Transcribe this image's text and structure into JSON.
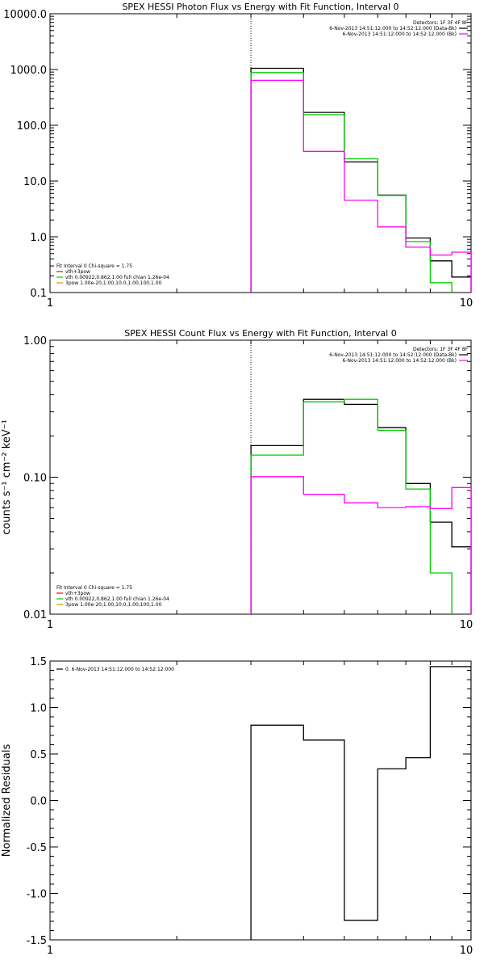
{
  "chart_data": [
    {
      "type": "line",
      "title": "SPEX HESSI Photon Flux vs Energy with Fit Function, Interval 0",
      "xscale": "log",
      "yscale": "log",
      "xlim": [
        1,
        10
      ],
      "ylim": [
        0.1,
        10000
      ],
      "x_ticks": [
        "1",
        "10"
      ],
      "y_ticks": [
        "0.1",
        "1.0",
        "10.0",
        "100.0",
        "1000.0",
        "10000.0"
      ],
      "ylabel": "",
      "xlabel": "",
      "energy_marker": 3,
      "legend_right": {
        "header": "Detectors: 1F 3F 4F 8F",
        "entries": [
          {
            "label": "6-Nov-2013 14:51:12.000 to 14:52:12.000 (Data-Bk)",
            "color": "#000000"
          },
          {
            "label": "6-Nov-2013 14:51:12.000 to 14:52:12.000 (Bk)",
            "color": "#ff00ff"
          }
        ]
      },
      "legend_left": {
        "header": "Fit Interval 0   Chi-square = 1.75",
        "entries": [
          {
            "label": "vth+3pow",
            "color": "#ff0000"
          },
          {
            "label": "vth 0.00922,0.862,1.00  full chian 1.26e-04",
            "color": "#00cc00"
          },
          {
            "label": "3pow 1.00e-20,1.00,10.0,1.00,100,1.00",
            "color": "#cc9900"
          }
        ]
      },
      "series": [
        {
          "color": "#000000",
          "edges": [
            3,
            4,
            5,
            6,
            7,
            8,
            9,
            10
          ],
          "values": [
            1050,
            170,
            22,
            5.6,
            0.95,
            0.37,
            0.19
          ]
        },
        {
          "color": "#00cc00",
          "edges": [
            3,
            4,
            5,
            6,
            7,
            8,
            9
          ],
          "values": [
            880,
            155,
            25,
            5.5,
            0.82,
            0.15
          ]
        },
        {
          "color": "#ff00ff",
          "edges": [
            3,
            4,
            5,
            6,
            7,
            8,
            9,
            10
          ],
          "values": [
            640,
            34,
            4.5,
            1.5,
            0.65,
            0.47,
            0.53
          ]
        }
      ]
    },
    {
      "type": "line",
      "title": "SPEX HESSI Count Flux vs Energy with Fit Function, Interval 0",
      "xscale": "log",
      "yscale": "log",
      "xlim": [
        1,
        10
      ],
      "ylim": [
        0.01,
        1.0
      ],
      "x_ticks": [
        "1",
        "10"
      ],
      "y_ticks": [
        "0.01",
        "0.10",
        "1.00"
      ],
      "ylabel": "counts s⁻¹ cm⁻² keV⁻¹",
      "xlabel": "",
      "energy_marker": 3,
      "legend_right": {
        "header": "Detectors: 1F 3F 4F 8F",
        "entries": [
          {
            "label": "6-Nov-2013 14:51:12.000 to 14:52:12.000 (Data-Bk)",
            "color": "#000000"
          },
          {
            "label": "6-Nov-2013 14:51:12.000 to 14:52:12.000 (Bk)",
            "color": "#ff00ff"
          }
        ]
      },
      "legend_left": {
        "header": "Fit Interval 0   Chi-square = 1.75",
        "entries": [
          {
            "label": "vth+3pow",
            "color": "#ff0000"
          },
          {
            "label": "vth 0.00922,0.862,1.00  full chian 1.26e-04",
            "color": "#00cc00"
          },
          {
            "label": "3pow 1.00e-20,1.00,10.0,1.00,100,1.00",
            "color": "#cc9900"
          }
        ]
      },
      "series": [
        {
          "color": "#000000",
          "edges": [
            3,
            4,
            5,
            6,
            7,
            8,
            9,
            10
          ],
          "values": [
            0.17,
            0.37,
            0.34,
            0.23,
            0.09,
            0.047,
            0.031
          ]
        },
        {
          "color": "#00cc00",
          "edges": [
            3,
            4,
            5,
            6,
            7,
            8,
            9
          ],
          "values": [
            0.145,
            0.355,
            0.37,
            0.22,
            0.082,
            0.02
          ]
        },
        {
          "color": "#ff00ff",
          "edges": [
            3,
            4,
            5,
            6,
            7,
            8,
            9,
            10
          ],
          "values": [
            0.101,
            0.075,
            0.065,
            0.06,
            0.061,
            0.059,
            0.084
          ]
        }
      ]
    },
    {
      "type": "line",
      "title": "",
      "xscale": "log",
      "yscale": "linear",
      "xlim": [
        1,
        10
      ],
      "ylim": [
        -1.5,
        1.5
      ],
      "x_ticks": [
        "1",
        "10"
      ],
      "y_ticks": [
        "-1.5",
        "-1.0",
        "-0.5",
        "0.0",
        "0.5",
        "1.0",
        "1.5"
      ],
      "ylabel": "Normalized Residuals",
      "xlabel": "",
      "legend_left": {
        "header": "",
        "entries": [
          {
            "label": "0. 6-Nov-2013 14:51:12.000 to 14:52:12.000",
            "color": "#000000"
          }
        ]
      },
      "series": [
        {
          "color": "#000000",
          "edges": [
            3,
            4,
            5,
            6,
            7,
            8,
            9,
            10
          ],
          "values": [
            0.81,
            0.65,
            -1.29,
            0.34,
            0.46,
            1.44,
            1.44
          ]
        }
      ]
    }
  ]
}
